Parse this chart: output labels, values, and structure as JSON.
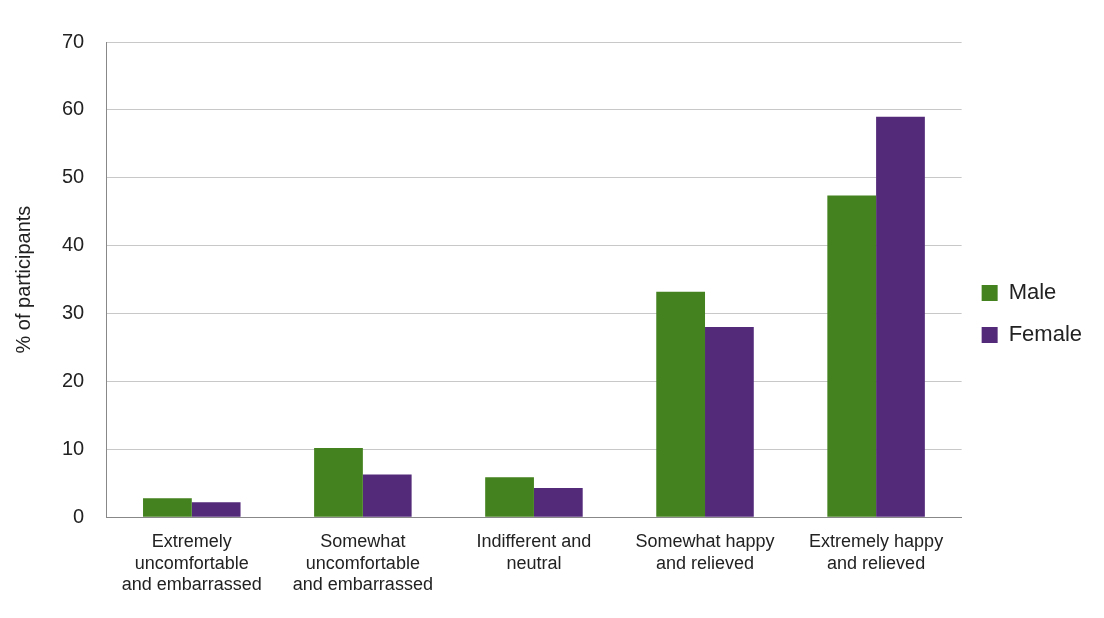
{
  "chart_data": {
    "type": "bar",
    "ylabel": "% of participants",
    "categories": [
      "Extremely uncomfortable and embarrassed",
      "Somewhat uncomfortable and embarrassed",
      "Indifferent and neutral",
      "Somewhat happy and relieved",
      "Extremely happy and relieved"
    ],
    "series": [
      {
        "name": "Male",
        "color": "#43821e",
        "values": [
          2.8,
          10.2,
          5.9,
          33.2,
          47.4
        ]
      },
      {
        "name": "Female",
        "color": "#532a7a",
        "values": [
          2.2,
          6.3,
          4.3,
          28.0,
          59.0
        ]
      }
    ],
    "ylim": [
      0,
      70
    ],
    "yticks": [
      0,
      10,
      20,
      30,
      40,
      50,
      60,
      70
    ],
    "grid": "y",
    "legend": "right"
  }
}
